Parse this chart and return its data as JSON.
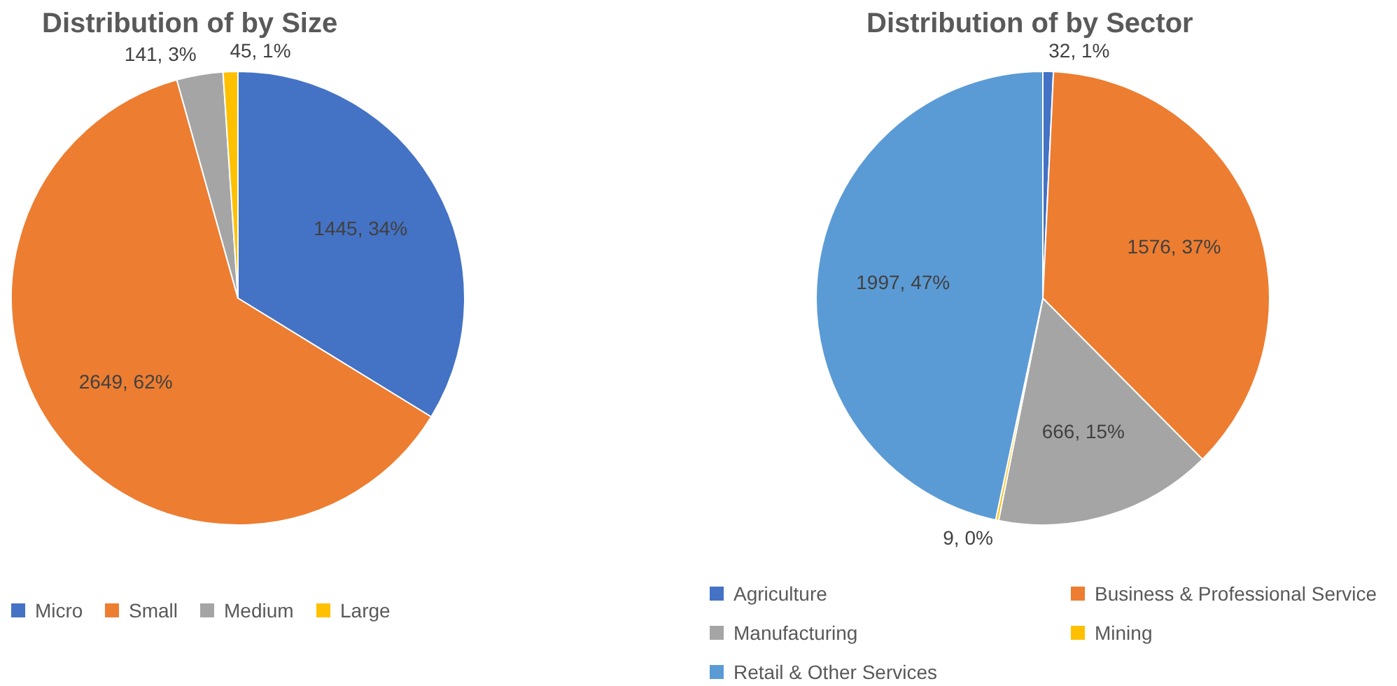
{
  "chart_data": [
    {
      "type": "pie",
      "title": "Distribution of by Size",
      "categories": [
        "Micro",
        "Small",
        "Medium",
        "Large"
      ],
      "values": [
        1445,
        2649,
        141,
        45
      ],
      "colors": [
        "#4472c4",
        "#ed7d31",
        "#a5a5a5",
        "#ffc000"
      ],
      "value_labels": [
        "1445, 34%",
        "2649, 62%",
        "141, 3%",
        "45, 1%"
      ],
      "legend": "bottom"
    },
    {
      "type": "pie",
      "title": "Distribution of by Sector",
      "categories": [
        "Agriculture",
        "Business & Professional Service",
        "Manufacturing",
        "Mining",
        "Retail & Other Services"
      ],
      "values": [
        32,
        1576,
        666,
        9,
        1997
      ],
      "colors": [
        "#4472c4",
        "#ed7d31",
        "#a5a5a5",
        "#ffc000",
        "#5b9bd5"
      ],
      "value_labels": [
        "32, 1%",
        "1576, 37%",
        "666, 15%",
        "9, 0%",
        "1997, 47%"
      ],
      "legend": "bottom"
    }
  ]
}
